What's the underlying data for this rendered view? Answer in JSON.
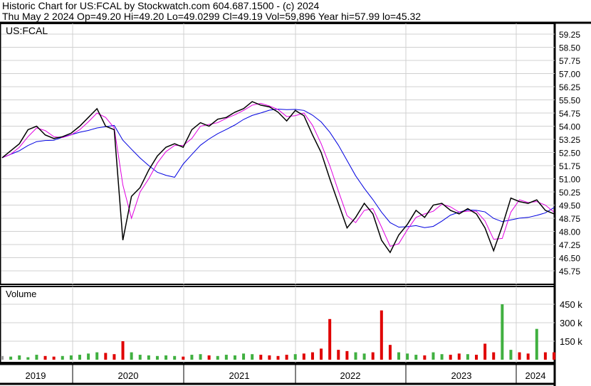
{
  "header": {
    "line1": "Historic Chart for US:FCAL by Stockwatch.com 604.687.1500 - (c) 2024",
    "line2": "Thu May  2 2024  Op=49.20  Hi=49.20  Lo=49.0299  Cl=49.19  Vol=59,896  Year hi=57.99  lo=45.32"
  },
  "chart_data": [
    {
      "type": "line",
      "title": "US:FCAL",
      "ylim": [
        45.2,
        59.7
      ],
      "yticks": [
        "59.25",
        "58.50",
        "57.75",
        "57.00",
        "56.25",
        "55.50",
        "54.75",
        "54.00",
        "53.25",
        "52.50",
        "51.75",
        "51.00",
        "50.25",
        "49.50",
        "48.75",
        "48.00",
        "47.25",
        "46.50",
        "45.75"
      ],
      "xticks": [
        "2019",
        "2020",
        "2021",
        "2022",
        "2023",
        "2024"
      ],
      "colors": {
        "price": "#000000",
        "ma_short": "#e000e0",
        "ma_long": "#0000e0"
      },
      "x": [
        "2019-01",
        "2019-02",
        "2019-03",
        "2019-04",
        "2019-05",
        "2019-06",
        "2019-07",
        "2019-08",
        "2019-09",
        "2019-10",
        "2019-11",
        "2019-12",
        "2020-01",
        "2020-02",
        "2020-03",
        "2020-04",
        "2020-05",
        "2020-06",
        "2020-07",
        "2020-08",
        "2020-09",
        "2020-10",
        "2020-11",
        "2020-12",
        "2021-01",
        "2021-02",
        "2021-03",
        "2021-04",
        "2021-05",
        "2021-06",
        "2021-07",
        "2021-08",
        "2021-09",
        "2021-10",
        "2021-11",
        "2021-12",
        "2022-01",
        "2022-02",
        "2022-03",
        "2022-04",
        "2022-05",
        "2022-06",
        "2022-07",
        "2022-08",
        "2022-09",
        "2022-10",
        "2022-11",
        "2022-12",
        "2023-01",
        "2023-02",
        "2023-03",
        "2023-04",
        "2023-05",
        "2023-06",
        "2023-07",
        "2023-08",
        "2023-09",
        "2023-10",
        "2023-11",
        "2023-12",
        "2024-01",
        "2024-02",
        "2024-03",
        "2024-04",
        "2024-05"
      ],
      "series": [
        {
          "values": [
            52.2,
            52.6,
            53.0,
            53.8,
            54.0,
            53.5,
            53.3,
            53.4,
            53.6,
            54.0,
            54.5,
            55.0,
            54.0,
            53.8,
            47.5,
            50.0,
            50.5,
            51.5,
            52.3,
            52.8,
            53.0,
            52.8,
            53.8,
            54.2,
            54.0,
            54.4,
            54.5,
            54.8,
            55.0,
            55.4,
            55.2,
            55.1,
            54.8,
            54.3,
            54.9,
            54.6,
            53.5,
            52.5,
            51.0,
            49.6,
            48.2,
            48.8,
            49.6,
            49.0,
            47.5,
            46.8,
            47.8,
            48.4,
            49.2,
            48.8,
            49.5,
            49.6,
            49.2,
            49.0,
            49.3,
            49.0,
            48.2,
            46.9,
            48.3,
            49.9,
            49.7,
            49.6,
            49.8,
            49.2,
            49.0
          ]
        }
      ]
    },
    {
      "type": "bar",
      "title": "Volume",
      "yticks": [
        "450 k",
        "300 k",
        "150 k"
      ],
      "ylim": [
        0,
        560
      ],
      "colors": {
        "up": "#40b040",
        "down": "#e00000",
        "flat": "#a0a0a0"
      },
      "values": [
        30,
        25,
        35,
        20,
        40,
        30,
        25,
        30,
        35,
        40,
        50,
        60,
        55,
        45,
        150,
        60,
        40,
        35,
        30,
        35,
        30,
        25,
        40,
        45,
        35,
        30,
        40,
        35,
        50,
        45,
        40,
        35,
        30,
        40,
        45,
        50,
        60,
        90,
        330,
        80,
        70,
        60,
        50,
        60,
        400,
        120,
        60,
        50,
        40,
        35,
        60,
        45,
        40,
        50,
        45,
        40,
        130,
        60,
        450,
        80,
        60,
        50,
        250,
        60,
        60
      ]
    }
  ]
}
